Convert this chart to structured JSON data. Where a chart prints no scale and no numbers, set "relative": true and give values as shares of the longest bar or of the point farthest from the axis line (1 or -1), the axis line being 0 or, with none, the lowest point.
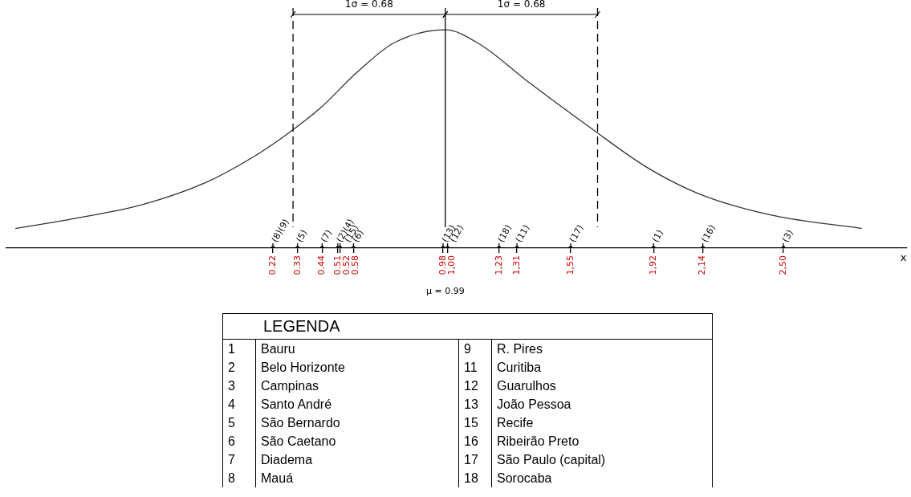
{
  "chart_data": {
    "type": "line",
    "relative": true,
    "marker": "none",
    "xlabel": "x",
    "legend_title": "LEGENDA",
    "xlim": [
      -0.97,
      3.05
    ],
    "xticks": [
      0.22,
      0.33,
      0.44,
      0.51,
      0.52,
      0.58,
      0.98,
      {
        "value": 1.0,
        "label": "1,00"
      },
      {
        "value": 1.23,
        "label": "1,23"
      },
      {
        "value": 1.31,
        "label": "1,31"
      },
      {
        "value": 1.55,
        "label": "1,55"
      },
      {
        "value": 1.92,
        "label": "1,92"
      },
      {
        "value": 2.14,
        "label": "2,14"
      },
      {
        "value": 2.5,
        "label": "2,50"
      }
    ],
    "series": [
      {
        "color": "#333333",
        "x": [
          -0.93,
          -0.67,
          -0.36,
          -0.08,
          0.12,
          0.28,
          0.43,
          0.59,
          0.76,
          0.99,
          1.15,
          1.35,
          1.64,
          1.89,
          2.12,
          2.45,
          2.85
        ],
        "values": [
          0.09,
          0.135,
          0.2,
          0.3,
          0.41,
          0.52,
          0.64,
          0.8,
          0.94,
          1,
          0.93,
          0.77,
          0.55,
          0.37,
          0.25,
          0.15,
          0.09
        ]
      },
      {
        "type": "scatter",
        "color": "#000000",
        "x": [
          0.22,
          0.33,
          0.44,
          0.51,
          0.52,
          0.58,
          0.98,
          1.0,
          1.23,
          1.31,
          1.55,
          1.92,
          2.14,
          2.5
        ],
        "values": [
          0,
          0,
          0,
          0,
          0,
          0,
          0,
          0,
          0,
          0,
          0,
          0,
          0,
          0
        ],
        "marker": "square"
      }
    ],
    "ref_lines": [
      {
        "axis": "x",
        "value": 0.31,
        "line_style": "dashed"
      },
      {
        "axis": "x",
        "value": 0.99,
        "label": "μ = 0.99",
        "line_style": "solid"
      },
      {
        "axis": "x",
        "value": 1.67,
        "line_style": "dashed"
      }
    ],
    "annotations": [
      {
        "text": "(8)(9)",
        "x": 0.22,
        "y": 0
      },
      {
        "text": "(5)",
        "x": 0.33,
        "y": 0
      },
      {
        "text": "(7)",
        "x": 0.44,
        "y": 0
      },
      {
        "text": "(2)(4)",
        "x": 0.51,
        "y": 0
      },
      {
        "text": "(15)",
        "x": 0.52,
        "y": 0
      },
      {
        "text": "(6)",
        "x": 0.58,
        "y": 0
      },
      {
        "text": "(13)",
        "x": 0.98,
        "y": 0
      },
      {
        "text": "(12)",
        "x": 1.0,
        "y": 0
      },
      {
        "text": "(18)",
        "x": 1.23,
        "y": 0
      },
      {
        "text": "(11)",
        "x": 1.31,
        "y": 0
      },
      {
        "text": "(17)",
        "x": 1.55,
        "y": 0
      },
      {
        "text": "(1)",
        "x": 1.92,
        "y": 0
      },
      {
        "text": "(16)",
        "x": 2.14,
        "y": 0
      },
      {
        "text": "(3)",
        "x": 2.5,
        "y": 0
      },
      "1σ = 0.68",
      "1σ = 0.68",
      "1 Bauru",
      "2 Belo Horizonte",
      "3 Campinas",
      "4 Santo André",
      "5 São Bernardo",
      "6 São Caetano",
      "7 Diadema",
      "8 Mauá",
      "9 R. Pires",
      "11 Curitiba",
      "12 Guarulhos",
      "13 João Pessoa",
      "15 Recife",
      "16 Ribeirão Preto",
      "17 São Paulo (capital)",
      "18 Sorocaba"
    ]
  }
}
